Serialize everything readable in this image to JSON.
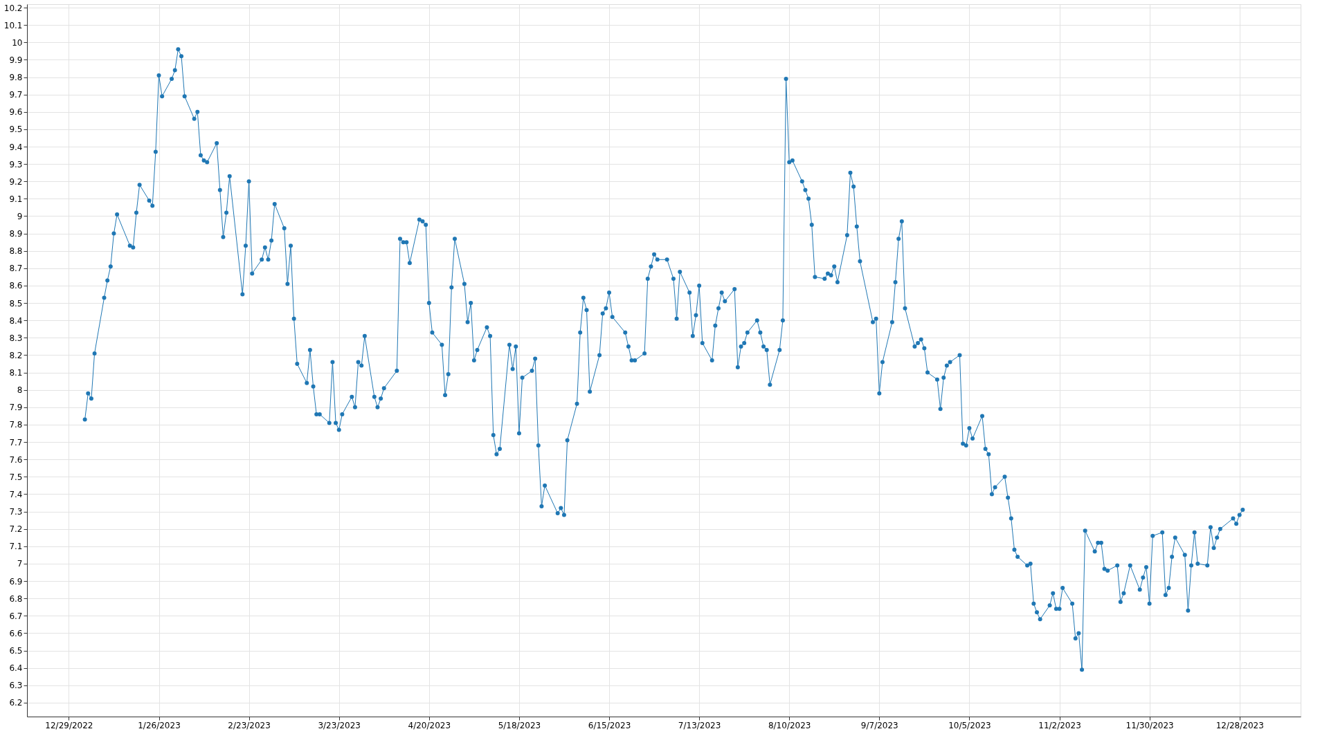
{
  "chart_data": {
    "type": "line",
    "marker": "circle",
    "line_style": "solid",
    "grid": true,
    "xlim": [
      "2022-12-16",
      "2024-01-16"
    ],
    "xticks": [
      {
        "value": "2022-12-29",
        "label": "12/29/2022"
      },
      {
        "value": "2023-01-26",
        "label": "1/26/2023"
      },
      {
        "value": "2023-02-23",
        "label": "2/23/2023"
      },
      {
        "value": "2023-03-23",
        "label": "3/23/2023"
      },
      {
        "value": "2023-04-20",
        "label": "4/20/2023"
      },
      {
        "value": "2023-05-18",
        "label": "5/18/2023"
      },
      {
        "value": "2023-06-15",
        "label": "6/15/2023"
      },
      {
        "value": "2023-07-13",
        "label": "7/13/2023"
      },
      {
        "value": "2023-08-10",
        "label": "8/10/2023"
      },
      {
        "value": "2023-09-07",
        "label": "9/7/2023"
      },
      {
        "value": "2023-10-05",
        "label": "10/5/2023"
      },
      {
        "value": "2023-11-02",
        "label": "11/2/2023"
      },
      {
        "value": "2023-11-30",
        "label": "11/30/2023"
      },
      {
        "value": "2023-12-28",
        "label": "12/28/2023"
      }
    ],
    "ylim": [
      6.12,
      10.22
    ],
    "yticks": [
      6.2,
      6.3,
      6.4,
      6.5,
      6.6,
      6.7,
      6.8,
      6.9,
      7,
      7.1,
      7.2,
      7.3,
      7.4,
      7.5,
      7.6,
      7.7,
      7.8,
      7.9,
      8,
      8.1,
      8.2,
      8.3,
      8.4,
      8.5,
      8.6,
      8.7,
      8.8,
      8.9,
      9,
      9.1,
      9.2,
      9.3,
      9.4,
      9.5,
      9.6,
      9.7,
      9.8,
      9.9,
      10,
      10.1,
      10.2
    ],
    "x": [
      "2023-01-03",
      "2023-01-04",
      "2023-01-05",
      "2023-01-06",
      "2023-01-09",
      "2023-01-10",
      "2023-01-11",
      "2023-01-12",
      "2023-01-13",
      "2023-01-17",
      "2023-01-18",
      "2023-01-19",
      "2023-01-20",
      "2023-01-23",
      "2023-01-24",
      "2023-01-25",
      "2023-01-26",
      "2023-01-27",
      "2023-01-30",
      "2023-01-31",
      "2023-02-01",
      "2023-02-02",
      "2023-02-03",
      "2023-02-06",
      "2023-02-07",
      "2023-02-08",
      "2023-02-09",
      "2023-02-10",
      "2023-02-13",
      "2023-02-14",
      "2023-02-15",
      "2023-02-16",
      "2023-02-17",
      "2023-02-21",
      "2023-02-22",
      "2023-02-23",
      "2023-02-24",
      "2023-02-27",
      "2023-02-28",
      "2023-03-01",
      "2023-03-02",
      "2023-03-03",
      "2023-03-06",
      "2023-03-07",
      "2023-03-08",
      "2023-03-09",
      "2023-03-10",
      "2023-03-13",
      "2023-03-14",
      "2023-03-15",
      "2023-03-16",
      "2023-03-17",
      "2023-03-20",
      "2023-03-21",
      "2023-03-22",
      "2023-03-23",
      "2023-03-24",
      "2023-03-27",
      "2023-03-28",
      "2023-03-29",
      "2023-03-30",
      "2023-03-31",
      "2023-04-03",
      "2023-04-04",
      "2023-04-05",
      "2023-04-06",
      "2023-04-10",
      "2023-04-11",
      "2023-04-12",
      "2023-04-13",
      "2023-04-14",
      "2023-04-17",
      "2023-04-18",
      "2023-04-19",
      "2023-04-20",
      "2023-04-21",
      "2023-04-24",
      "2023-04-25",
      "2023-04-26",
      "2023-04-27",
      "2023-04-28",
      "2023-05-01",
      "2023-05-02",
      "2023-05-03",
      "2023-05-04",
      "2023-05-05",
      "2023-05-08",
      "2023-05-09",
      "2023-05-10",
      "2023-05-11",
      "2023-05-12",
      "2023-05-15",
      "2023-05-16",
      "2023-05-17",
      "2023-05-18",
      "2023-05-19",
      "2023-05-22",
      "2023-05-23",
      "2023-05-24",
      "2023-05-25",
      "2023-05-26",
      "2023-05-30",
      "2023-05-31",
      "2023-06-01",
      "2023-06-02",
      "2023-06-05",
      "2023-06-06",
      "2023-06-07",
      "2023-06-08",
      "2023-06-09",
      "2023-06-12",
      "2023-06-13",
      "2023-06-14",
      "2023-06-15",
      "2023-06-16",
      "2023-06-20",
      "2023-06-21",
      "2023-06-22",
      "2023-06-23",
      "2023-06-26",
      "2023-06-27",
      "2023-06-28",
      "2023-06-29",
      "2023-06-30",
      "2023-07-03",
      "2023-07-05",
      "2023-07-06",
      "2023-07-07",
      "2023-07-10",
      "2023-07-11",
      "2023-07-12",
      "2023-07-13",
      "2023-07-14",
      "2023-07-17",
      "2023-07-18",
      "2023-07-19",
      "2023-07-20",
      "2023-07-21",
      "2023-07-24",
      "2023-07-25",
      "2023-07-26",
      "2023-07-27",
      "2023-07-28",
      "2023-07-31",
      "2023-08-01",
      "2023-08-02",
      "2023-08-03",
      "2023-08-04",
      "2023-08-07",
      "2023-08-08",
      "2023-08-09",
      "2023-08-10",
      "2023-08-11",
      "2023-08-14",
      "2023-08-15",
      "2023-08-16",
      "2023-08-17",
      "2023-08-18",
      "2023-08-21",
      "2023-08-22",
      "2023-08-23",
      "2023-08-24",
      "2023-08-25",
      "2023-08-28",
      "2023-08-29",
      "2023-08-30",
      "2023-08-31",
      "2023-09-01",
      "2023-09-05",
      "2023-09-06",
      "2023-09-07",
      "2023-09-08",
      "2023-09-11",
      "2023-09-12",
      "2023-09-13",
      "2023-09-14",
      "2023-09-15",
      "2023-09-18",
      "2023-09-19",
      "2023-09-20",
      "2023-09-21",
      "2023-09-22",
      "2023-09-25",
      "2023-09-26",
      "2023-09-27",
      "2023-09-28",
      "2023-09-29",
      "2023-10-02",
      "2023-10-03",
      "2023-10-04",
      "2023-10-05",
      "2023-10-06",
      "2023-10-09",
      "2023-10-10",
      "2023-10-11",
      "2023-10-12",
      "2023-10-13",
      "2023-10-16",
      "2023-10-17",
      "2023-10-18",
      "2023-10-19",
      "2023-10-20",
      "2023-10-23",
      "2023-10-24",
      "2023-10-25",
      "2023-10-26",
      "2023-10-27",
      "2023-10-30",
      "2023-10-31",
      "2023-11-01",
      "2023-11-02",
      "2023-11-03",
      "2023-11-06",
      "2023-11-07",
      "2023-11-08",
      "2023-11-09",
      "2023-11-10",
      "2023-11-13",
      "2023-11-14",
      "2023-11-15",
      "2023-11-16",
      "2023-11-17",
      "2023-11-20",
      "2023-11-21",
      "2023-11-22",
      "2023-11-24",
      "2023-11-27",
      "2023-11-28",
      "2023-11-29",
      "2023-11-30",
      "2023-12-01",
      "2023-12-04",
      "2023-12-05",
      "2023-12-06",
      "2023-12-07",
      "2023-12-08",
      "2023-12-11",
      "2023-12-12",
      "2023-12-13",
      "2023-12-14",
      "2023-12-15",
      "2023-12-18",
      "2023-12-19",
      "2023-12-20",
      "2023-12-21",
      "2023-12-22",
      "2023-12-26",
      "2023-12-27",
      "2023-12-28",
      "2023-12-29"
    ],
    "series": [
      {
        "color": "#1f77b4",
        "values": [
          7.83,
          7.98,
          7.95,
          8.21,
          8.53,
          8.63,
          8.71,
          8.9,
          9.01,
          8.83,
          8.82,
          9.02,
          9.18,
          9.09,
          9.06,
          9.37,
          9.81,
          9.69,
          9.79,
          9.84,
          9.96,
          9.92,
          9.69,
          9.56,
          9.6,
          9.35,
          9.32,
          9.31,
          9.42,
          9.15,
          8.88,
          9.02,
          9.23,
          8.55,
          8.83,
          9.2,
          8.67,
          8.75,
          8.82,
          8.75,
          8.86,
          9.07,
          8.93,
          8.61,
          8.83,
          8.41,
          8.15,
          8.04,
          8.23,
          8.02,
          7.86,
          7.86,
          7.81,
          8.16,
          7.81,
          7.77,
          7.86,
          7.96,
          7.9,
          8.16,
          8.14,
          8.31,
          7.96,
          7.9,
          7.95,
          8.01,
          8.11,
          8.87,
          8.85,
          8.85,
          8.73,
          8.98,
          8.97,
          8.95,
          8.5,
          8.33,
          8.26,
          7.97,
          8.09,
          8.59,
          8.87,
          8.61,
          8.39,
          8.5,
          8.17,
          8.23,
          8.36,
          8.31,
          7.74,
          7.63,
          7.66,
          8.26,
          8.12,
          8.25,
          7.75,
          8.07,
          8.11,
          8.18,
          7.68,
          7.33,
          7.45,
          7.29,
          7.32,
          7.28,
          7.71,
          7.92,
          8.33,
          8.53,
          8.46,
          7.99,
          8.2,
          8.44,
          8.47,
          8.56,
          8.42,
          8.33,
          8.25,
          8.17,
          8.17,
          8.21,
          8.64,
          8.71,
          8.78,
          8.75,
          8.75,
          8.64,
          8.41,
          8.68,
          8.56,
          8.31,
          8.43,
          8.6,
          8.27,
          8.17,
          8.37,
          8.47,
          8.56,
          8.51,
          8.58,
          8.13,
          8.25,
          8.27,
          8.33,
          8.4,
          8.33,
          8.25,
          8.23,
          8.03,
          8.23,
          8.4,
          9.79,
          9.31,
          9.32,
          9.2,
          9.15,
          9.1,
          8.95,
          8.65,
          8.64,
          8.67,
          8.66,
          8.71,
          8.62,
          8.89,
          9.25,
          9.17,
          8.94,
          8.74,
          8.39,
          8.41,
          7.98,
          8.16,
          8.39,
          8.62,
          8.87,
          8.97,
          8.47,
          8.25,
          8.27,
          8.29,
          8.24,
          8.1,
          8.06,
          7.89,
          8.07,
          8.14,
          8.16,
          8.2,
          7.69,
          7.68,
          7.78,
          7.72,
          7.85,
          7.66,
          7.63,
          7.4,
          7.44,
          7.5,
          7.38,
          7.26,
          7.08,
          7.04,
          6.99,
          7.0,
          6.77,
          6.72,
          6.68,
          6.76,
          6.83,
          6.74,
          6.74,
          6.86,
          6.77,
          6.57,
          6.6,
          6.39,
          7.19,
          7.07,
          7.12,
          7.12,
          6.97,
          6.96,
          6.99,
          6.78,
          6.83,
          6.99,
          6.85,
          6.92,
          6.98,
          6.77,
          7.16,
          7.18,
          6.82,
          6.86,
          7.04,
          7.15,
          7.05,
          6.73,
          6.99,
          7.18,
          7.0,
          6.99,
          7.21,
          7.09,
          7.15,
          7.2,
          7.26,
          7.23,
          7.28,
          7.31
        ]
      }
    ]
  }
}
